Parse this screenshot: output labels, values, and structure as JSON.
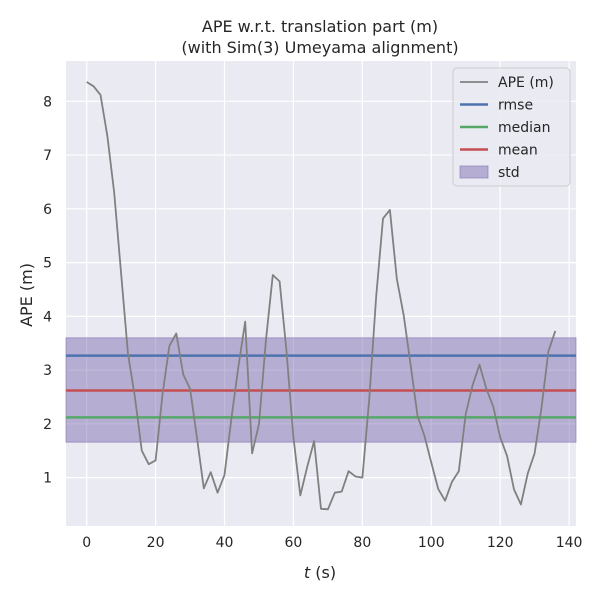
{
  "chart_data": {
    "type": "line",
    "title_line1": "APE w.r.t. translation part (m)",
    "title_line2": "(with Sim(3) Umeyama alignment)",
    "xlabel_var": "t",
    "xlabel_unit": " (s)",
    "ylabel": "APE (m)",
    "xlim": [
      -6,
      142
    ],
    "ylim": [
      0.1,
      8.75
    ],
    "xticks": [
      0,
      20,
      40,
      60,
      80,
      100,
      120,
      140
    ],
    "yticks": [
      1,
      2,
      3,
      4,
      5,
      6,
      7,
      8
    ],
    "grid": true,
    "legend_position": "top-right",
    "colors": {
      "background": "#EAEAF2",
      "ape": "#808080",
      "rmse": "#4C72B0",
      "median": "#55A868",
      "mean": "#C44E52",
      "std": "#8172B2"
    },
    "series": [
      {
        "name": "APE (m)",
        "x": [
          0,
          2,
          4,
          6,
          8,
          10,
          12,
          14,
          16,
          18,
          20,
          22,
          24,
          26,
          28,
          30,
          32,
          34,
          36,
          38,
          40,
          42,
          44,
          46,
          48,
          50,
          52,
          54,
          56,
          58,
          60,
          62,
          64,
          66,
          68,
          70,
          72,
          74,
          76,
          78,
          80,
          82,
          84,
          86,
          88,
          90,
          92,
          94,
          96,
          98,
          100,
          102,
          104,
          106,
          108,
          110,
          112,
          114,
          116,
          118,
          120,
          122,
          124,
          126,
          128,
          130,
          132,
          134,
          136
        ],
        "y": [
          8.36,
          8.28,
          8.12,
          7.35,
          6.3,
          4.8,
          3.3,
          2.5,
          1.5,
          1.25,
          1.32,
          2.55,
          3.45,
          3.68,
          2.92,
          2.65,
          1.75,
          0.8,
          1.1,
          0.72,
          1.05,
          2.1,
          3.05,
          3.9,
          1.45,
          2.0,
          3.55,
          4.77,
          4.65,
          3.35,
          1.75,
          0.67,
          1.2,
          1.68,
          0.42,
          0.41,
          0.72,
          0.74,
          1.12,
          1.02,
          1.0,
          2.45,
          4.35,
          5.82,
          5.98,
          4.7,
          4.02,
          3.1,
          2.15,
          1.78,
          1.28,
          0.79,
          0.57,
          0.92,
          1.12,
          2.18,
          2.72,
          3.1,
          2.65,
          2.32,
          1.75,
          1.4,
          0.78,
          0.5,
          1.08,
          1.45,
          2.3,
          3.35,
          3.73
        ]
      },
      {
        "name": "rmse",
        "value": 3.27
      },
      {
        "name": "median",
        "value": 2.12
      },
      {
        "name": "mean",
        "value": 2.62
      },
      {
        "name": "std",
        "lower": 1.66,
        "upper": 3.6
      }
    ]
  }
}
